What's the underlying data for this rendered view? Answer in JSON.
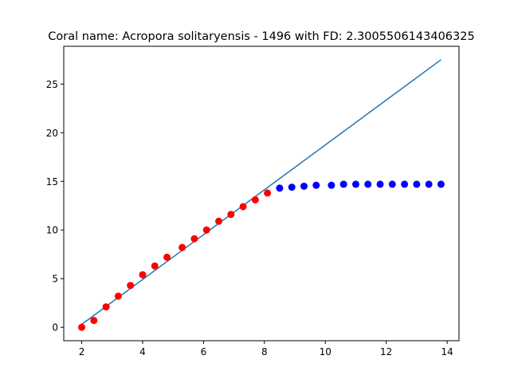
{
  "chart_data": {
    "type": "scatter",
    "title": "Coral name: Acropora solitaryensis - 1496 with FD: 2.3005506143406325",
    "xlabel": "",
    "ylabel": "",
    "xlim": [
      1.41,
      14.39
    ],
    "ylim": [
      -1.38,
      28.88
    ],
    "grid": false,
    "xticks": [
      2,
      4,
      6,
      8,
      10,
      12,
      14
    ],
    "yticks": [
      0,
      5,
      10,
      15,
      20,
      25
    ],
    "series": [
      {
        "kind": "scatter",
        "color": "#ff0000",
        "x": [
          2.0,
          2.4,
          2.8,
          3.2,
          3.6,
          4.0,
          4.4,
          4.8,
          5.3,
          5.7,
          6.1,
          6.5,
          6.9,
          7.3,
          7.7,
          8.1
        ],
        "y": [
          0.0,
          0.7,
          2.1,
          3.2,
          4.3,
          5.4,
          6.3,
          7.2,
          8.2,
          9.1,
          10.0,
          10.9,
          11.6,
          12.4,
          13.1,
          13.8
        ]
      },
      {
        "kind": "scatter",
        "color": "#0000ff",
        "x": [
          8.5,
          8.9,
          9.3,
          9.7,
          10.2,
          10.6,
          11.0,
          11.4,
          11.8,
          12.2,
          12.6,
          13.0,
          13.4,
          13.8
        ],
        "y": [
          14.3,
          14.4,
          14.5,
          14.6,
          14.6,
          14.7,
          14.7,
          14.7,
          14.7,
          14.7,
          14.7,
          14.7,
          14.7,
          14.7
        ]
      },
      {
        "kind": "line",
        "color": "#1f77b4",
        "x": [
          2.0,
          13.8
        ],
        "y": [
          0.3,
          27.5
        ]
      }
    ]
  }
}
